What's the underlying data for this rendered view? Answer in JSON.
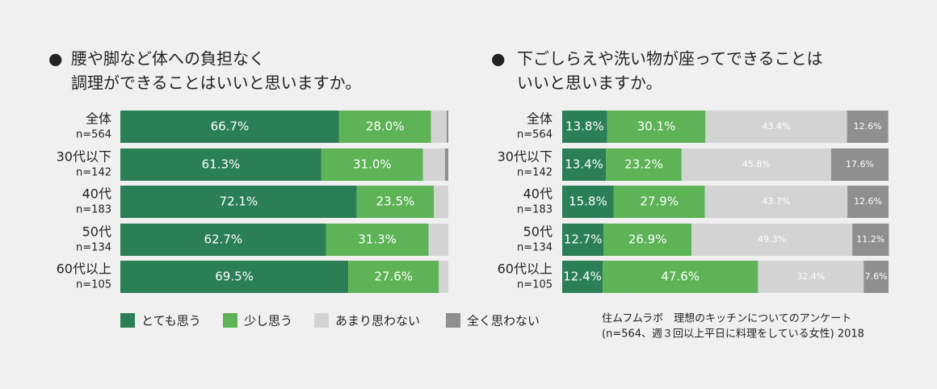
{
  "chart_data": [
    {
      "type": "bar",
      "stacked": true,
      "orientation": "horizontal",
      "title": [
        "腰や脚など体への負担なく",
        "調理ができることはいいと思いますか。"
      ],
      "categories": [
        "全体",
        "30代以下",
        "40代",
        "50代",
        "60代以上"
      ],
      "sample_sizes": [
        "n=564",
        "n=142",
        "n=183",
        "n=134",
        "n=105"
      ],
      "legend": "bottom",
      "series": [
        {
          "name": "とても思う",
          "color": "#2a7f57",
          "values": [
            66.7,
            61.3,
            72.1,
            62.7,
            69.5
          ],
          "value_labels": [
            "66.7%",
            "61.3%",
            "72.1%",
            "62.7%",
            "69.5%"
          ]
        },
        {
          "name": "少し思う",
          "color": "#5db356",
          "values": [
            28.0,
            31.0,
            23.5,
            31.3,
            27.6
          ],
          "value_labels": [
            "28.0%",
            "31.0%",
            "23.5%",
            "31.3%",
            "27.6%"
          ]
        },
        {
          "name": "あまり思わない",
          "color": "#d3d3d3",
          "values": [
            4.8,
            6.7,
            4.4,
            6.0,
            2.9
          ]
        },
        {
          "name": "全く思わない",
          "color": "#8f8f8f",
          "values": [
            0.5,
            1.0,
            0,
            0,
            0
          ]
        }
      ]
    },
    {
      "type": "bar",
      "stacked": true,
      "orientation": "horizontal",
      "title": [
        "下ごしらえや洗い物が座ってできることは",
        "いいと思いますか。"
      ],
      "categories": [
        "全体",
        "30代以下",
        "40代",
        "50代",
        "60代以上"
      ],
      "sample_sizes": [
        "n=564",
        "n=142",
        "n=183",
        "n=134",
        "n=105"
      ],
      "source": [
        "住ムフムラボ　理想のキッチンについてのアンケート",
        "(n=564、週３回以上平日に料理をしている女性) 2018"
      ],
      "series": [
        {
          "color": "#2a7f57",
          "values": [
            13.8,
            13.4,
            15.8,
            12.7,
            12.4
          ],
          "value_labels": [
            "13.8%",
            "13.4%",
            "15.8%",
            "12.7%",
            "12.4%"
          ]
        },
        {
          "color": "#5db356",
          "values": [
            30.1,
            23.2,
            27.9,
            26.9,
            47.6
          ],
          "value_labels": [
            "30.1%",
            "23.2%",
            "27.9%",
            "26.9%",
            "47.6%"
          ]
        },
        {
          "color": "#d3d3d3",
          "values": [
            43.4,
            45.8,
            43.7,
            49.3,
            32.4
          ],
          "value_labels": [
            "43.4%",
            "45.8%",
            "43.7%",
            "49.3%",
            "32.4%"
          ]
        },
        {
          "color": "#8f8f8f",
          "values": [
            12.6,
            17.6,
            12.6,
            11.2,
            7.6
          ],
          "value_labels": [
            "12.6%",
            "17.6%",
            "12.6%",
            "11.2%",
            "7.6%"
          ]
        }
      ]
    }
  ]
}
